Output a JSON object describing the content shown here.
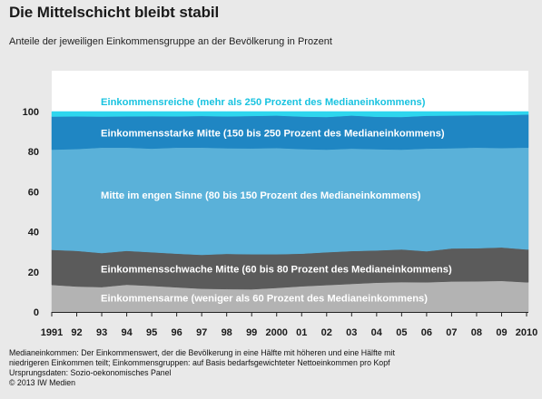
{
  "header": {
    "title": "Die Mittelschicht bleibt stabil",
    "subtitle": "Anteile der jeweiligen Einkommensgruppe an der Bevölkerung in Prozent"
  },
  "chart_data": {
    "type": "area",
    "stacked": true,
    "title": "Die Mittelschicht bleibt stabil",
    "subtitle": "Anteile der jeweiligen Einkommensgruppe an der Bevölkerung in Prozent",
    "xlabel": "",
    "ylabel": "",
    "ylim": [
      0,
      100
    ],
    "yticks": [
      0,
      20,
      40,
      60,
      80,
      100
    ],
    "grid": false,
    "legend": "inline",
    "categories": [
      "1991",
      "92",
      "93",
      "94",
      "95",
      "96",
      "97",
      "98",
      "99",
      "2000",
      "01",
      "02",
      "03",
      "04",
      "05",
      "06",
      "07",
      "08",
      "09",
      "2010"
    ],
    "series": [
      {
        "name": "Einkommensarme (weniger als 60 Prozent des Medianeinkommens)",
        "color": "#b3b3b3",
        "values": [
          13.5,
          12.7,
          12.4,
          13.6,
          13.0,
          12.3,
          11.6,
          11.4,
          11.3,
          12.0,
          12.8,
          13.4,
          14.0,
          14.6,
          14.9,
          14.8,
          15.2,
          15.3,
          15.5,
          14.8
        ]
      },
      {
        "name": "Einkommensschwache Mitte (60 bis 80 Prozent des Medianeinkommens)",
        "color": "#5b5b5b",
        "values": [
          17.5,
          17.8,
          17.0,
          16.9,
          16.8,
          16.8,
          16.9,
          17.6,
          17.5,
          16.8,
          16.3,
          16.4,
          16.4,
          16.1,
          16.3,
          15.5,
          16.5,
          16.5,
          16.7,
          16.4
        ]
      },
      {
        "name": "Mitte im engen Sinne (80 bis 150 Prozent des Medianeinkommens)",
        "color": "#5ab1d9",
        "values": [
          50.0,
          50.8,
          52.6,
          51.5,
          51.7,
          52.9,
          53.5,
          52.7,
          52.8,
          53.0,
          52.2,
          51.2,
          51.1,
          50.5,
          49.8,
          51.2,
          50.0,
          50.2,
          49.6,
          50.8
        ]
      },
      {
        "name": "Einkommensstarke Mitte (150 bis 250 Prozent des Medianeinkommens)",
        "color": "#1f86c3",
        "values": [
          16.5,
          16.3,
          15.5,
          15.6,
          16.2,
          15.6,
          15.8,
          15.9,
          16.2,
          16.2,
          16.2,
          16.3,
          16.5,
          16.2,
          16.3,
          16.4,
          16.3,
          16.2,
          16.4,
          16.5
        ]
      },
      {
        "name": "Einkommensreiche (mehr als 250 Prozent des Medianeinkommens)",
        "color": "#2ed6ee",
        "values": [
          2.5,
          2.4,
          2.5,
          2.4,
          2.3,
          2.4,
          2.2,
          2.4,
          2.2,
          2.0,
          2.5,
          2.7,
          2.0,
          2.6,
          2.7,
          2.1,
          2.0,
          1.8,
          1.8,
          1.5
        ]
      }
    ]
  },
  "footnote": {
    "lines": [
      "Medianeinkommen: Der Einkommenswert, der die Bevölkerung in eine Hälfte mit höheren und eine Hälfte mit",
      "niedrigeren Einkommen teilt; Einkommensgruppen: auf Basis bedarfsgewichteter Nettoeinkommen pro Kopf",
      "Ursprungsdaten: Sozio-oekonomisches Panel",
      "© 2013 IW Medien"
    ]
  }
}
